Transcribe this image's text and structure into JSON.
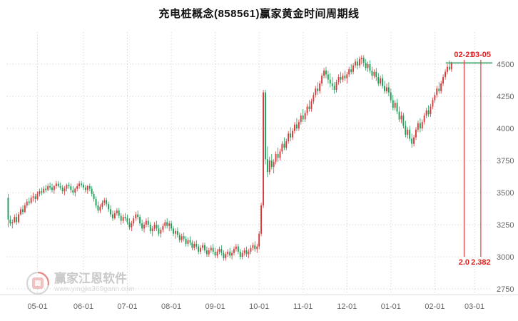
{
  "title": "充电桩概念(858561)赢家黄金时间周期线",
  "watermark": {
    "name": "赢家江恩软件",
    "url": "www.yingjia360gann.com"
  },
  "colors": {
    "up": "#d93a3a",
    "down": "#1e9e57",
    "grid": "#cccccc",
    "annotation": "#e02020",
    "hline": "#1e9e57",
    "axis_text": "#666666",
    "title_text": "#111111"
  },
  "annotations": {
    "time_labels": [
      {
        "label": "02-21",
        "slot": 218
      },
      {
        "label": "03-05",
        "slot": 226
      }
    ],
    "ratio_labels": [
      "2.0",
      "2.382"
    ],
    "hline_value": 4510
  },
  "chart_data": {
    "type": "candlestick",
    "title": "充电桩概念(858561)赢家黄金时间周期线",
    "ylabel": "",
    "xlabel": "",
    "legend": [],
    "grid": "dotted",
    "y_ticks": [
      4500,
      4250,
      4000,
      3750,
      3500,
      3250,
      3000,
      2750
    ],
    "y_axis_side": "right",
    "x_ticks": [
      {
        "label": "05-01",
        "slot": 14
      },
      {
        "label": "06-01",
        "slot": 36
      },
      {
        "label": "07-01",
        "slot": 57
      },
      {
        "label": "08-01",
        "slot": 78
      },
      {
        "label": "09-01",
        "slot": 99
      },
      {
        "label": "10-01",
        "slot": 120
      },
      {
        "label": "11-01",
        "slot": 141
      },
      {
        "label": "12-01",
        "slot": 162
      },
      {
        "label": "01-01",
        "slot": 183
      },
      {
        "label": "02-01",
        "slot": 204
      },
      {
        "label": "03-01",
        "slot": 223
      }
    ],
    "total_slots": 232,
    "candles": [
      [
        3460,
        3490,
        3230,
        3290
      ],
      [
        3290,
        3320,
        3240,
        3260
      ],
      [
        3260,
        3290,
        3220,
        3270
      ],
      [
        3270,
        3330,
        3260,
        3310
      ],
      [
        3310,
        3340,
        3250,
        3270
      ],
      [
        3270,
        3350,
        3260,
        3330
      ],
      [
        3330,
        3390,
        3320,
        3370
      ],
      [
        3370,
        3400,
        3330,
        3350
      ],
      [
        3350,
        3420,
        3340,
        3400
      ],
      [
        3400,
        3450,
        3380,
        3430
      ],
      [
        3430,
        3460,
        3400,
        3420
      ],
      [
        3420,
        3480,
        3410,
        3460
      ],
      [
        3460,
        3500,
        3430,
        3470
      ],
      [
        3470,
        3490,
        3420,
        3450
      ],
      [
        3450,
        3510,
        3440,
        3490
      ],
      [
        3490,
        3530,
        3470,
        3510
      ],
      [
        3510,
        3540,
        3480,
        3500
      ],
      [
        3500,
        3550,
        3490,
        3530
      ],
      [
        3530,
        3560,
        3500,
        3520
      ],
      [
        3520,
        3570,
        3510,
        3550
      ],
      [
        3550,
        3580,
        3520,
        3540
      ],
      [
        3540,
        3570,
        3500,
        3520
      ],
      [
        3520,
        3560,
        3490,
        3550
      ],
      [
        3550,
        3590,
        3530,
        3570
      ],
      [
        3570,
        3590,
        3540,
        3550
      ],
      [
        3550,
        3580,
        3520,
        3540
      ],
      [
        3540,
        3560,
        3490,
        3510
      ],
      [
        3510,
        3550,
        3480,
        3530
      ],
      [
        3530,
        3570,
        3510,
        3560
      ],
      [
        3560,
        3580,
        3530,
        3550
      ],
      [
        3550,
        3570,
        3500,
        3520
      ],
      [
        3520,
        3550,
        3480,
        3500
      ],
      [
        3500,
        3540,
        3470,
        3530
      ],
      [
        3530,
        3570,
        3510,
        3550
      ],
      [
        3550,
        3590,
        3530,
        3570
      ],
      [
        3570,
        3590,
        3540,
        3560
      ],
      [
        3560,
        3580,
        3520,
        3540
      ],
      [
        3540,
        3560,
        3500,
        3520
      ],
      [
        3520,
        3560,
        3490,
        3550
      ],
      [
        3550,
        3570,
        3510,
        3530
      ],
      [
        3530,
        3550,
        3470,
        3490
      ],
      [
        3490,
        3510,
        3430,
        3450
      ],
      [
        3450,
        3470,
        3380,
        3400
      ],
      [
        3400,
        3430,
        3340,
        3360
      ],
      [
        3360,
        3410,
        3340,
        3390
      ],
      [
        3390,
        3440,
        3370,
        3420
      ],
      [
        3420,
        3460,
        3400,
        3440
      ],
      [
        3440,
        3460,
        3390,
        3410
      ],
      [
        3410,
        3430,
        3350,
        3370
      ],
      [
        3370,
        3400,
        3310,
        3330
      ],
      [
        3330,
        3360,
        3280,
        3300
      ],
      [
        3300,
        3360,
        3290,
        3340
      ],
      [
        3340,
        3380,
        3320,
        3360
      ],
      [
        3360,
        3380,
        3300,
        3320
      ],
      [
        3320,
        3340,
        3250,
        3280
      ],
      [
        3280,
        3330,
        3260,
        3310
      ],
      [
        3310,
        3340,
        3280,
        3300
      ],
      [
        3300,
        3330,
        3250,
        3270
      ],
      [
        3270,
        3300,
        3210,
        3230
      ],
      [
        3230,
        3280,
        3200,
        3260
      ],
      [
        3260,
        3320,
        3240,
        3300
      ],
      [
        3300,
        3350,
        3280,
        3330
      ],
      [
        3330,
        3360,
        3290,
        3310
      ],
      [
        3310,
        3330,
        3240,
        3260
      ],
      [
        3260,
        3290,
        3200,
        3220
      ],
      [
        3220,
        3270,
        3190,
        3250
      ],
      [
        3250,
        3300,
        3230,
        3280
      ],
      [
        3280,
        3310,
        3230,
        3250
      ],
      [
        3250,
        3270,
        3180,
        3200
      ],
      [
        3200,
        3240,
        3160,
        3220
      ],
      [
        3220,
        3270,
        3200,
        3250
      ],
      [
        3250,
        3280,
        3200,
        3220
      ],
      [
        3220,
        3250,
        3160,
        3180
      ],
      [
        3180,
        3230,
        3150,
        3210
      ],
      [
        3210,
        3260,
        3190,
        3240
      ],
      [
        3240,
        3290,
        3220,
        3270
      ],
      [
        3270,
        3300,
        3220,
        3240
      ],
      [
        3240,
        3280,
        3200,
        3260
      ],
      [
        3260,
        3280,
        3200,
        3220
      ],
      [
        3220,
        3240,
        3160,
        3180
      ],
      [
        3180,
        3220,
        3140,
        3200
      ],
      [
        3200,
        3230,
        3150,
        3170
      ],
      [
        3170,
        3190,
        3110,
        3130
      ],
      [
        3130,
        3180,
        3110,
        3160
      ],
      [
        3160,
        3190,
        3120,
        3140
      ],
      [
        3140,
        3160,
        3080,
        3100
      ],
      [
        3100,
        3150,
        3080,
        3130
      ],
      [
        3130,
        3160,
        3090,
        3110
      ],
      [
        3110,
        3130,
        3050,
        3070
      ],
      [
        3070,
        3120,
        3050,
        3100
      ],
      [
        3100,
        3130,
        3060,
        3080
      ],
      [
        3080,
        3100,
        3020,
        3040
      ],
      [
        3040,
        3090,
        3020,
        3070
      ],
      [
        3070,
        3110,
        3050,
        3090
      ],
      [
        3090,
        3110,
        3030,
        3050
      ],
      [
        3050,
        3080,
        3000,
        3020
      ],
      [
        3020,
        3070,
        3000,
        3050
      ],
      [
        3050,
        3090,
        3030,
        3070
      ],
      [
        3070,
        3100,
        3020,
        3040
      ],
      [
        3040,
        3070,
        2990,
        3010
      ],
      [
        3010,
        3060,
        2990,
        3040
      ],
      [
        3040,
        3080,
        3020,
        3060
      ],
      [
        3060,
        3090,
        3010,
        3030
      ],
      [
        3030,
        3050,
        2970,
        2990
      ],
      [
        2990,
        3040,
        2970,
        3020
      ],
      [
        3020,
        3060,
        3000,
        3040
      ],
      [
        3040,
        3070,
        2990,
        3010
      ],
      [
        3010,
        3050,
        2980,
        3030
      ],
      [
        3030,
        3080,
        3010,
        3060
      ],
      [
        3060,
        3100,
        3040,
        3080
      ],
      [
        3080,
        3100,
        3020,
        3040
      ],
      [
        3040,
        3060,
        2980,
        3000
      ],
      [
        3000,
        3050,
        2980,
        3030
      ],
      [
        3030,
        3070,
        3010,
        3050
      ],
      [
        3050,
        3080,
        3000,
        3020
      ],
      [
        3020,
        3060,
        2990,
        3040
      ],
      [
        3040,
        3090,
        3020,
        3070
      ],
      [
        3070,
        3110,
        3050,
        3090
      ],
      [
        3090,
        3120,
        3040,
        3060
      ],
      [
        3060,
        3100,
        3030,
        3080
      ],
      [
        3080,
        3200,
        3060,
        3180
      ],
      [
        3180,
        3420,
        3160,
        3400
      ],
      [
        3400,
        4300,
        3380,
        4280
      ],
      [
        4280,
        4300,
        3720,
        3760
      ],
      [
        3760,
        3860,
        3620,
        3660
      ],
      [
        3660,
        3780,
        3640,
        3750
      ],
      [
        3750,
        3800,
        3680,
        3700
      ],
      [
        3700,
        3760,
        3650,
        3740
      ],
      [
        3740,
        3820,
        3720,
        3800
      ],
      [
        3800,
        3850,
        3740,
        3770
      ],
      [
        3770,
        3840,
        3750,
        3820
      ],
      [
        3820,
        3900,
        3800,
        3880
      ],
      [
        3880,
        3930,
        3830,
        3850
      ],
      [
        3850,
        3920,
        3830,
        3900
      ],
      [
        3900,
        3980,
        3880,
        3960
      ],
      [
        3960,
        4010,
        3900,
        3930
      ],
      [
        3930,
        4000,
        3910,
        3980
      ],
      [
        3980,
        4050,
        3960,
        4030
      ],
      [
        4030,
        4080,
        3980,
        4000
      ],
      [
        4000,
        4070,
        3980,
        4050
      ],
      [
        4050,
        4120,
        4030,
        4100
      ],
      [
        4100,
        4150,
        4050,
        4070
      ],
      [
        4070,
        4140,
        4050,
        4120
      ],
      [
        4120,
        4190,
        4100,
        4170
      ],
      [
        4170,
        4220,
        4130,
        4150
      ],
      [
        4150,
        4230,
        4130,
        4210
      ],
      [
        4210,
        4280,
        4190,
        4260
      ],
      [
        4260,
        4330,
        4240,
        4310
      ],
      [
        4310,
        4360,
        4260,
        4290
      ],
      [
        4290,
        4370,
        4270,
        4350
      ],
      [
        4350,
        4430,
        4330,
        4410
      ],
      [
        4410,
        4470,
        4390,
        4450
      ],
      [
        4450,
        4480,
        4390,
        4420
      ],
      [
        4420,
        4450,
        4350,
        4380
      ],
      [
        4380,
        4430,
        4320,
        4350
      ],
      [
        4350,
        4400,
        4300,
        4330
      ],
      [
        4330,
        4360,
        4270,
        4300
      ],
      [
        4300,
        4380,
        4280,
        4360
      ],
      [
        4360,
        4420,
        4340,
        4400
      ],
      [
        4400,
        4440,
        4350,
        4380
      ],
      [
        4380,
        4430,
        4360,
        4410
      ],
      [
        4410,
        4450,
        4370,
        4390
      ],
      [
        4390,
        4440,
        4350,
        4420
      ],
      [
        4420,
        4480,
        4400,
        4460
      ],
      [
        4460,
        4500,
        4420,
        4440
      ],
      [
        4440,
        4510,
        4420,
        4490
      ],
      [
        4490,
        4540,
        4470,
        4520
      ],
      [
        4520,
        4550,
        4460,
        4490
      ],
      [
        4490,
        4560,
        4470,
        4540
      ],
      [
        4540,
        4570,
        4500,
        4550
      ],
      [
        4550,
        4570,
        4480,
        4510
      ],
      [
        4510,
        4540,
        4450,
        4470
      ],
      [
        4470,
        4520,
        4440,
        4500
      ],
      [
        4500,
        4530,
        4430,
        4450
      ],
      [
        4450,
        4480,
        4380,
        4410
      ],
      [
        4410,
        4460,
        4390,
        4440
      ],
      [
        4440,
        4470,
        4370,
        4400
      ],
      [
        4400,
        4430,
        4330,
        4350
      ],
      [
        4350,
        4410,
        4330,
        4390
      ],
      [
        4390,
        4420,
        4310,
        4330
      ],
      [
        4330,
        4370,
        4270,
        4290
      ],
      [
        4290,
        4350,
        4270,
        4320
      ],
      [
        4320,
        4360,
        4250,
        4280
      ],
      [
        4280,
        4310,
        4200,
        4220
      ],
      [
        4220,
        4260,
        4140,
        4160
      ],
      [
        4160,
        4220,
        4140,
        4200
      ],
      [
        4200,
        4230,
        4110,
        4130
      ],
      [
        4130,
        4170,
        4050,
        4070
      ],
      [
        4070,
        4130,
        4040,
        4100
      ],
      [
        4100,
        4120,
        4000,
        4020
      ],
      [
        4020,
        4060,
        3930,
        3950
      ],
      [
        3950,
        4010,
        3920,
        3990
      ],
      [
        3990,
        4020,
        3900,
        3920
      ],
      [
        3920,
        3960,
        3850,
        3880
      ],
      [
        3880,
        3950,
        3860,
        3930
      ],
      [
        3930,
        4010,
        3910,
        3990
      ],
      [
        3990,
        4060,
        3970,
        4040
      ],
      [
        4040,
        4080,
        3970,
        4000
      ],
      [
        4000,
        4070,
        3980,
        4050
      ],
      [
        4050,
        4120,
        4030,
        4100
      ],
      [
        4100,
        4160,
        4080,
        4140
      ],
      [
        4140,
        4180,
        4090,
        4110
      ],
      [
        4110,
        4190,
        4090,
        4170
      ],
      [
        4170,
        4240,
        4150,
        4220
      ],
      [
        4220,
        4280,
        4200,
        4260
      ],
      [
        4260,
        4330,
        4240,
        4310
      ],
      [
        4310,
        4360,
        4270,
        4290
      ],
      [
        4290,
        4370,
        4270,
        4350
      ],
      [
        4350,
        4420,
        4330,
        4400
      ],
      [
        4400,
        4460,
        4380,
        4440
      ],
      [
        4440,
        4500,
        4420,
        4480
      ],
      [
        4480,
        4530,
        4450,
        4460
      ],
      [
        4460,
        4520,
        4440,
        4510
      ]
    ]
  }
}
